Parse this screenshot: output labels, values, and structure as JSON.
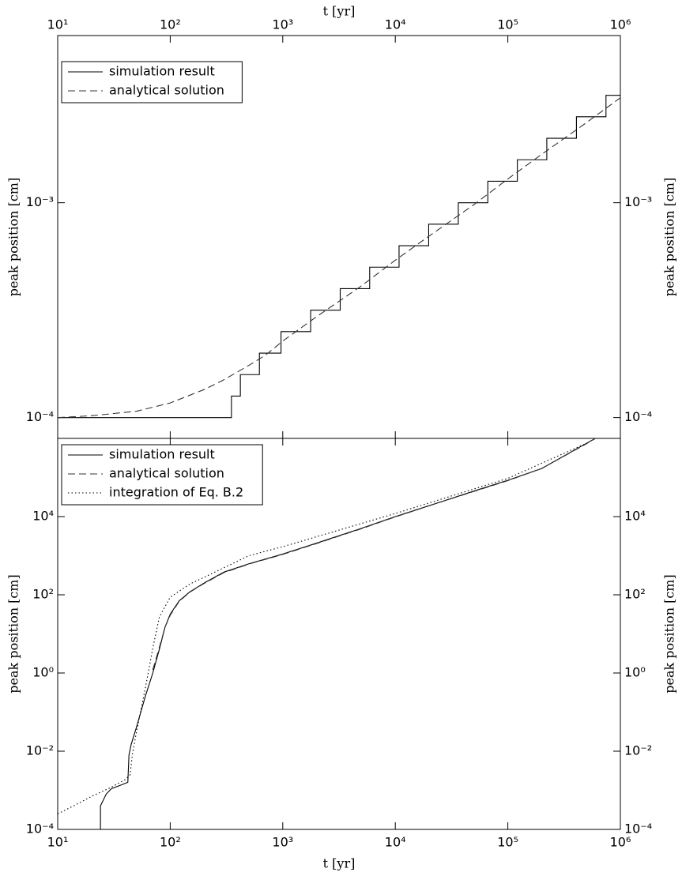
{
  "chart_data": [
    {
      "type": "line",
      "xlabel": "t [yr]",
      "ylabel": "peak position [cm]",
      "xscale": "log",
      "yscale": "log",
      "xaxis_position": "top",
      "legend": "upper left",
      "xlim": [
        10,
        1000000
      ],
      "ylim": [
        8e-05,
        0.006
      ],
      "xticks": [
        {
          "value": 10,
          "label": "10¹"
        },
        {
          "value": 100,
          "label": "10²"
        },
        {
          "value": 1000,
          "label": "10³"
        },
        {
          "value": 10000,
          "label": "10⁴"
        },
        {
          "value": 100000,
          "label": "10⁵"
        },
        {
          "value": 1000000,
          "label": "10⁶"
        }
      ],
      "yticks": [
        {
          "value": 0.0001,
          "label": "10⁻⁴"
        },
        {
          "value": 0.001,
          "label": "10⁻³"
        }
      ],
      "series": [
        {
          "name": "simulation result",
          "color": "#000000",
          "linestyle": "solid",
          "x": [
            10,
            350,
            350,
            420,
            420,
            620,
            620,
            965,
            965,
            1770,
            1770,
            3240,
            3240,
            5920,
            5920,
            10800,
            10800,
            19800,
            19800,
            36300,
            36300,
            66400,
            66400,
            121500,
            121500,
            222000,
            222000,
            407000,
            407000,
            745000,
            745000,
            1000000
          ],
          "values": [
            0.0001,
            0.0001,
            0.0001259,
            0.0001259,
            0.0001585,
            0.0001585,
            0.0001995,
            0.0001995,
            0.0002512,
            0.0002512,
            0.0003162,
            0.0003162,
            0.0003981,
            0.0003981,
            0.0005012,
            0.0005012,
            0.000631,
            0.000631,
            0.0007943,
            0.0007943,
            0.001,
            0.001,
            0.001259,
            0.001259,
            0.001585,
            0.001585,
            0.001995,
            0.001995,
            0.002512,
            0.002512,
            0.003162,
            0.003162
          ]
        },
        {
          "name": "analytical solution",
          "color": "#333333",
          "linestyle": "dashed",
          "x": [
            10,
            20,
            50,
            100,
            200,
            300,
            500,
            700,
            1000,
            2000,
            5000,
            10000,
            20000,
            50000,
            100000,
            200000,
            500000,
            1000000
          ],
          "values": [
            0.0001,
            0.000102,
            0.000107,
            0.000117,
            0.000135,
            0.00015,
            0.000175,
            0.000195,
            0.000227,
            0.000295,
            0.00041,
            0.00054,
            0.0007,
            0.00098,
            0.00129,
            0.00168,
            0.00236,
            0.00308
          ]
        }
      ]
    },
    {
      "type": "line",
      "xlabel": "t [yr]",
      "ylabel": "peak position [cm]",
      "xscale": "log",
      "yscale": "log",
      "xaxis_position": "bottom",
      "legend": "upper left",
      "xlim": [
        10,
        1000000
      ],
      "ylim": [
        0.0001,
        1000000
      ],
      "xticks": [
        {
          "value": 10,
          "label": "10¹"
        },
        {
          "value": 100,
          "label": "10²"
        },
        {
          "value": 1000,
          "label": "10³"
        },
        {
          "value": 10000,
          "label": "10⁴"
        },
        {
          "value": 100000,
          "label": "10⁵"
        },
        {
          "value": 1000000,
          "label": "10⁶"
        }
      ],
      "yticks": [
        {
          "value": 0.0001,
          "label": "10⁻⁴"
        },
        {
          "value": 0.01,
          "label": "10⁻²"
        },
        {
          "value": 1,
          "label": "10⁰"
        },
        {
          "value": 100,
          "label": "10²"
        },
        {
          "value": 10000,
          "label": "10⁴"
        }
      ],
      "series": [
        {
          "name": "simulation result",
          "color": "#000000",
          "linestyle": "solid",
          "x": [
            24,
            24,
            27,
            30,
            35,
            42,
            43,
            45,
            50,
            60,
            70,
            80,
            90,
            100,
            120,
            150,
            200,
            300,
            500,
            1000,
            2000,
            5000,
            10000,
            20000,
            50000,
            100000,
            200000,
            500000,
            600000
          ],
          "values": [
            0.0001,
            0.0004,
            0.0008,
            0.0011,
            0.0013,
            0.0016,
            0.008,
            0.015,
            0.04,
            0.25,
            1,
            4,
            15,
            32,
            70,
            120,
            200,
            380,
            620,
            1100,
            2100,
            5000,
            10000,
            19000,
            45000,
            85000,
            170000,
            750000,
            1000000
          ]
        },
        {
          "name": "analytical solution",
          "color": "#333333",
          "linestyle": "dashed",
          "x": [
            70,
            80,
            90,
            100,
            120,
            150,
            200,
            300,
            500,
            1000,
            2000,
            5000,
            10000,
            20000,
            50000,
            100000,
            200000,
            500000,
            600000
          ],
          "values": [
            1.2,
            4.5,
            15,
            30,
            68,
            118,
            195,
            370,
            610,
            1080,
            2050,
            4900,
            9800,
            19000,
            44000,
            83000,
            170000,
            730000,
            1000000
          ]
        },
        {
          "name": "integration of Eq. B.2",
          "color": "#000000",
          "linestyle": "dotted",
          "x": [
            10,
            15,
            20,
            30,
            40,
            44,
            46,
            50,
            60,
            70,
            80,
            100,
            150,
            200,
            500,
            1000,
            10000,
            100000,
            500000
          ],
          "values": [
            0.00025,
            0.00045,
            0.0007,
            0.0012,
            0.0019,
            0.0025,
            0.008,
            0.03,
            0.4,
            4.3,
            27,
            87,
            190,
            280,
            1000,
            1700,
            12000,
            95000,
            750000
          ]
        }
      ]
    }
  ]
}
